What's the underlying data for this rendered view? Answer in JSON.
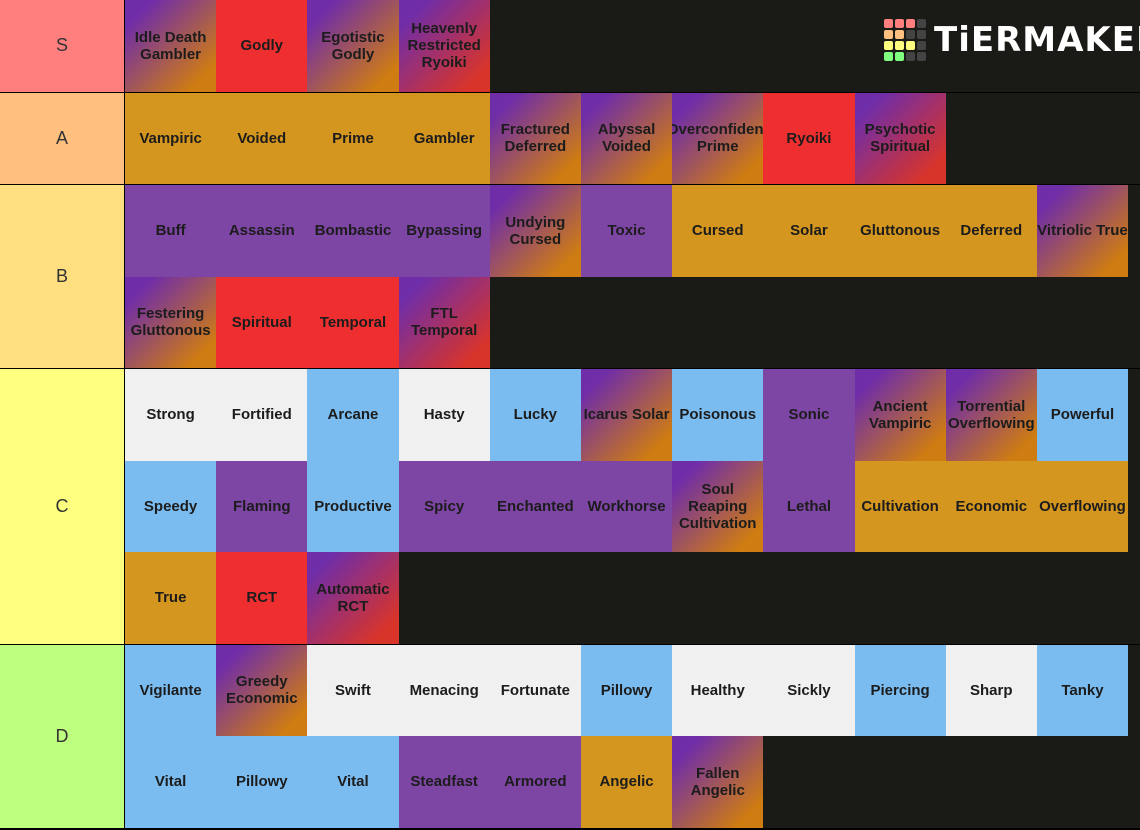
{
  "logo": "TiERMAKER",
  "tiers": [
    {
      "label": "S",
      "color": "#ff7f7f",
      "rows": 1,
      "items": [
        {
          "label": "Idle Death Gambler",
          "color": [
            "#6f2da8",
            "#cf7c12"
          ]
        },
        {
          "label": "Godly",
          "color": "#ef2f2f"
        },
        {
          "label": "Egotistic Godly",
          "color": [
            "#6f2da8",
            "#cf7c12"
          ]
        },
        {
          "label": "Heavenly Restricted Ryoiki",
          "color": [
            "#6f2da8",
            "#d8342a"
          ]
        }
      ]
    },
    {
      "label": "A",
      "color": "#ffbf7f",
      "rows": 1,
      "items": [
        {
          "label": "Vampiric",
          "color": "#d4961e"
        },
        {
          "label": "Voided",
          "color": "#d4961e"
        },
        {
          "label": "Prime",
          "color": "#d4961e"
        },
        {
          "label": "Gambler",
          "color": "#d4961e"
        },
        {
          "label": "Fractured Deferred",
          "color": [
            "#6f2da8",
            "#cf7c12"
          ]
        },
        {
          "label": "Abyssal Voided",
          "color": [
            "#6f2da8",
            "#cf7c12"
          ]
        },
        {
          "label": "Overconfident Prime",
          "color": [
            "#6f2da8",
            "#cf7c12"
          ]
        },
        {
          "label": "Ryoiki",
          "color": "#ef2f2f"
        },
        {
          "label": "Psychotic Spiritual",
          "color": [
            "#6f2da8",
            "#d8342a"
          ]
        }
      ]
    },
    {
      "label": "B",
      "color": "#ffdf7f",
      "rows": 2,
      "items": [
        {
          "label": "Buff",
          "color": "#7d45a4"
        },
        {
          "label": "Assassin",
          "color": "#7d45a4"
        },
        {
          "label": "Bombastic",
          "color": "#7d45a4"
        },
        {
          "label": "Bypassing",
          "color": "#7d45a4"
        },
        {
          "label": "Undying Cursed",
          "color": [
            "#6f2da8",
            "#cf7c12"
          ]
        },
        {
          "label": "Toxic",
          "color": "#7d45a4"
        },
        {
          "label": "Cursed",
          "color": "#d4961e"
        },
        {
          "label": "Solar",
          "color": "#d4961e"
        },
        {
          "label": "Gluttonous",
          "color": "#d4961e"
        },
        {
          "label": "Deferred",
          "color": "#d4961e"
        },
        {
          "label": "Vitriolic True",
          "color": [
            "#6f2da8",
            "#cf7c12"
          ]
        },
        {
          "label": "Festering Gluttonous",
          "color": [
            "#6f2da8",
            "#cf7c12"
          ]
        },
        {
          "label": "Spiritual",
          "color": "#ef2f2f"
        },
        {
          "label": "Temporal",
          "color": "#ef2f2f"
        },
        {
          "label": "FTL Temporal",
          "color": [
            "#6f2da8",
            "#d8342a"
          ]
        }
      ]
    },
    {
      "label": "C",
      "color": "#ffff7f",
      "rows": 3,
      "items": [
        {
          "label": "Strong",
          "color": "#f0f0f0"
        },
        {
          "label": "Fortified",
          "color": "#f0f0f0"
        },
        {
          "label": "Arcane",
          "color": "#7bbcf0"
        },
        {
          "label": "Hasty",
          "color": "#f0f0f0"
        },
        {
          "label": "Lucky",
          "color": "#7bbcf0"
        },
        {
          "label": "Icarus Solar",
          "color": [
            "#6f2da8",
            "#cf7c12"
          ]
        },
        {
          "label": "Poisonous",
          "color": "#7bbcf0"
        },
        {
          "label": "Sonic",
          "color": "#7d45a4"
        },
        {
          "label": "Ancient Vampiric",
          "color": [
            "#6f2da8",
            "#cf7c12"
          ]
        },
        {
          "label": "Torrential Overflowing",
          "color": [
            "#6f2da8",
            "#cf7c12"
          ]
        },
        {
          "label": "Powerful",
          "color": "#7bbcf0"
        },
        {
          "label": "Speedy",
          "color": "#7bbcf0"
        },
        {
          "label": "Flaming",
          "color": "#7d45a4"
        },
        {
          "label": "Productive",
          "color": "#7bbcf0"
        },
        {
          "label": "Spicy",
          "color": "#7d45a4"
        },
        {
          "label": "Enchanted",
          "color": "#7d45a4"
        },
        {
          "label": "Workhorse",
          "color": "#7d45a4"
        },
        {
          "label": "Soul Reaping Cultivation",
          "color": [
            "#6f2da8",
            "#cf7c12"
          ]
        },
        {
          "label": "Lethal",
          "color": "#7d45a4"
        },
        {
          "label": "Cultivation",
          "color": "#d4961e"
        },
        {
          "label": "Economic",
          "color": "#d4961e"
        },
        {
          "label": "Overflowing",
          "color": "#d4961e"
        },
        {
          "label": "True",
          "color": "#d4961e"
        },
        {
          "label": "RCT",
          "color": "#ef2f2f"
        },
        {
          "label": "Automatic RCT",
          "color": [
            "#6f2da8",
            "#d8342a"
          ]
        }
      ]
    },
    {
      "label": "D",
      "color": "#bfff7f",
      "rows": 2,
      "items": [
        {
          "label": "Vigilante",
          "color": "#7bbcf0"
        },
        {
          "label": "Greedy Economic",
          "color": [
            "#6f2da8",
            "#cf7c12"
          ]
        },
        {
          "label": "Swift",
          "color": "#f0f0f0"
        },
        {
          "label": "Menacing",
          "color": "#f0f0f0"
        },
        {
          "label": "Fortunate",
          "color": "#f0f0f0"
        },
        {
          "label": "Pillowy",
          "color": "#7bbcf0"
        },
        {
          "label": "Healthy",
          "color": "#f0f0f0"
        },
        {
          "label": "Sickly",
          "color": "#f0f0f0"
        },
        {
          "label": "Piercing",
          "color": "#7bbcf0"
        },
        {
          "label": "Sharp",
          "color": "#f0f0f0"
        },
        {
          "label": "Tanky",
          "color": "#7bbcf0"
        },
        {
          "label": "Vital",
          "color": "#7bbcf0"
        },
        {
          "label": "Pillowy",
          "color": "#7bbcf0"
        },
        {
          "label": "Vital",
          "color": "#7bbcf0"
        },
        {
          "label": "Steadfast",
          "color": "#7d45a4"
        },
        {
          "label": "Armored",
          "color": "#7d45a4"
        },
        {
          "label": "Angelic",
          "color": "#d4961e"
        },
        {
          "label": "Fallen Angelic",
          "color": [
            "#6f2da8",
            "#cf7c12"
          ]
        }
      ]
    }
  ]
}
